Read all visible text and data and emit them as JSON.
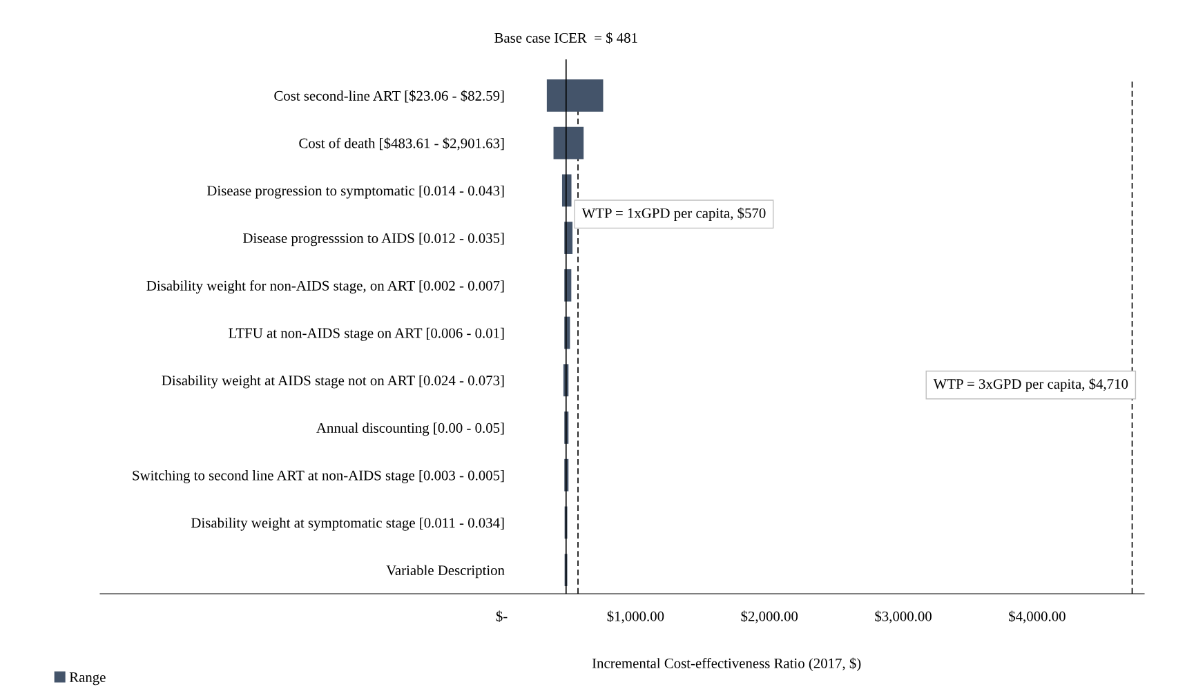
{
  "chart_data": {
    "type": "bar",
    "orientation": "horizontal",
    "categories": [
      "Cost second-line ART [$23.06 - $82.59]",
      "Cost of death [$483.61 - $2,901.63]",
      "Disease progression to symptomatic [0.014 - 0.043]",
      "Disease progresssion to AIDS [0.012 - 0.035]",
      "Disability weight for non-AIDS stage, on ART [0.002 - 0.007]",
      "LTFU at non-AIDS stage on ART [0.006 - 0.01]",
      "Disability weight at AIDS stage not on ART [0.024 - 0.073]",
      "Annual discounting [0.00 - 0.05]",
      "Switching to second line ART at non-AIDS stage [0.003 - 0.005]",
      "Disability weight at symptomatic stage [0.011 - 0.034]",
      "Variable Description"
    ],
    "series": [
      {
        "name": "Range",
        "color": "#44546a",
        "base": [
          337,
          387,
          451,
          468,
          468,
          468,
          461,
          468,
          468,
          470,
          470
        ],
        "values": [
          421,
          225,
          70,
          61,
          52,
          42,
          38,
          31,
          31,
          20,
          20
        ]
      }
    ],
    "xlabel": "Incremental Cost-effectiveness Ratio (2017, $)",
    "xlim": [
      -3000,
      4800
    ],
    "xticks": [
      {
        "value": 0,
        "label": "$-"
      },
      {
        "value": 1000,
        "label": "$1,000.00"
      },
      {
        "value": 2000,
        "label": "$2,000.00"
      },
      {
        "value": 3000,
        "label": "$3,000.00"
      },
      {
        "value": 4000,
        "label": "$4,000.00"
      }
    ],
    "ref_lines": [
      {
        "axis": "x",
        "value": 481,
        "label": "Base case ICER  = $ 481",
        "line_style": "solid",
        "color": "#000000"
      },
      {
        "axis": "x",
        "value": 570,
        "label": "WTP = 1xGPD per capita, $570",
        "line_style": "dashed",
        "color": "#000000"
      },
      {
        "axis": "x",
        "value": 4710,
        "label": "WTP = 3xGPD per capita, $4,710",
        "line_style": "dashed",
        "color": "#000000"
      }
    ],
    "legend": "bottom left",
    "grid": false
  }
}
